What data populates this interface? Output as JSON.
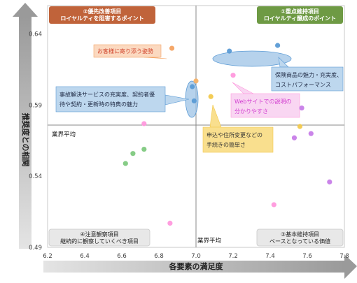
{
  "chart_data": {
    "type": "scatter",
    "xlabel": "各要素の満足度",
    "ylabel": "推奨度との相関",
    "xlim": [
      6.2,
      7.8
    ],
    "ylim": [
      0.49,
      0.66
    ],
    "x_ticks": [
      "6.2",
      "6.4",
      "6.6",
      "6.8",
      "7.0",
      "7.2",
      "7.4",
      "7.6",
      "7.8"
    ],
    "y_ticks": [
      "0.49",
      "0.54",
      "0.59",
      "0.64"
    ],
    "average_x": 7.0,
    "average_y": 0.576,
    "average_label_x": "業界平均",
    "average_label_y": "業界平均",
    "quadrants": [
      {
        "number": "②",
        "title": "優先改善項目",
        "subtitle": "ロイヤルティを阻害するポイント",
        "color": "#C0633A",
        "position": "top-left"
      },
      {
        "number": "①",
        "title": "重点維持項目",
        "subtitle": "ロイヤルティ醸成のポイント",
        "color": "#6E9A44",
        "position": "top-right"
      },
      {
        "number": "④",
        "title": "注意観察項目",
        "subtitle": "継続的に観察していくべき項目",
        "color": "#E8E8E8",
        "position": "bottom-left"
      },
      {
        "number": "③",
        "title": "基本維持項目",
        "subtitle": "ベースとなっている価値",
        "color": "#E8E8E8",
        "position": "bottom-right"
      }
    ],
    "series": [
      {
        "color": "#F4A261",
        "points": [
          [
            6.87,
            0.63
          ]
        ]
      },
      {
        "color": "#5B9BD5",
        "points": [
          [
            6.98,
            0.603
          ],
          [
            6.99,
            0.593
          ],
          [
            7.18,
            0.628
          ],
          [
            7.44,
            0.632
          ]
        ]
      },
      {
        "color": "#F7B267",
        "points": [
          [
            7.0,
            0.607
          ]
        ]
      },
      {
        "color": "#F2C94C",
        "points": [
          [
            7.08,
            0.596
          ],
          [
            7.56,
            0.575
          ]
        ]
      },
      {
        "color": "#FF99DD",
        "points": [
          [
            6.72,
            0.577
          ],
          [
            6.86,
            0.507
          ],
          [
            7.2,
            0.611
          ],
          [
            7.42,
            0.52
          ]
        ]
      },
      {
        "color": "#C77DE8",
        "points": [
          [
            7.57,
            0.588
          ],
          [
            7.53,
            0.567
          ],
          [
            7.62,
            0.57
          ],
          [
            7.72,
            0.536
          ]
        ]
      },
      {
        "color": "#7FC97F",
        "points": [
          [
            6.62,
            0.549
          ],
          [
            6.66,
            0.556
          ],
          [
            6.72,
            0.559
          ]
        ]
      }
    ],
    "annotations": [
      {
        "id": "service",
        "text": "お客様に寄り添う姿勢",
        "color": "#F4A261"
      },
      {
        "id": "product",
        "text": "保険商品の魅力・充実度、コストパフォーマンス",
        "color": "#5B9BD5"
      },
      {
        "id": "claims",
        "text": "事故解決サービスの充実度、契約者優待や契約・更新時の特典の魅力",
        "color": "#5B9BD5"
      },
      {
        "id": "web",
        "text": "Webサイトでの説明の分かりやすさ",
        "color": "#FF99DD"
      },
      {
        "id": "procedure",
        "text": "申込や住所変更などの手続きの簡単さ",
        "color": "#F2C94C"
      }
    ]
  }
}
